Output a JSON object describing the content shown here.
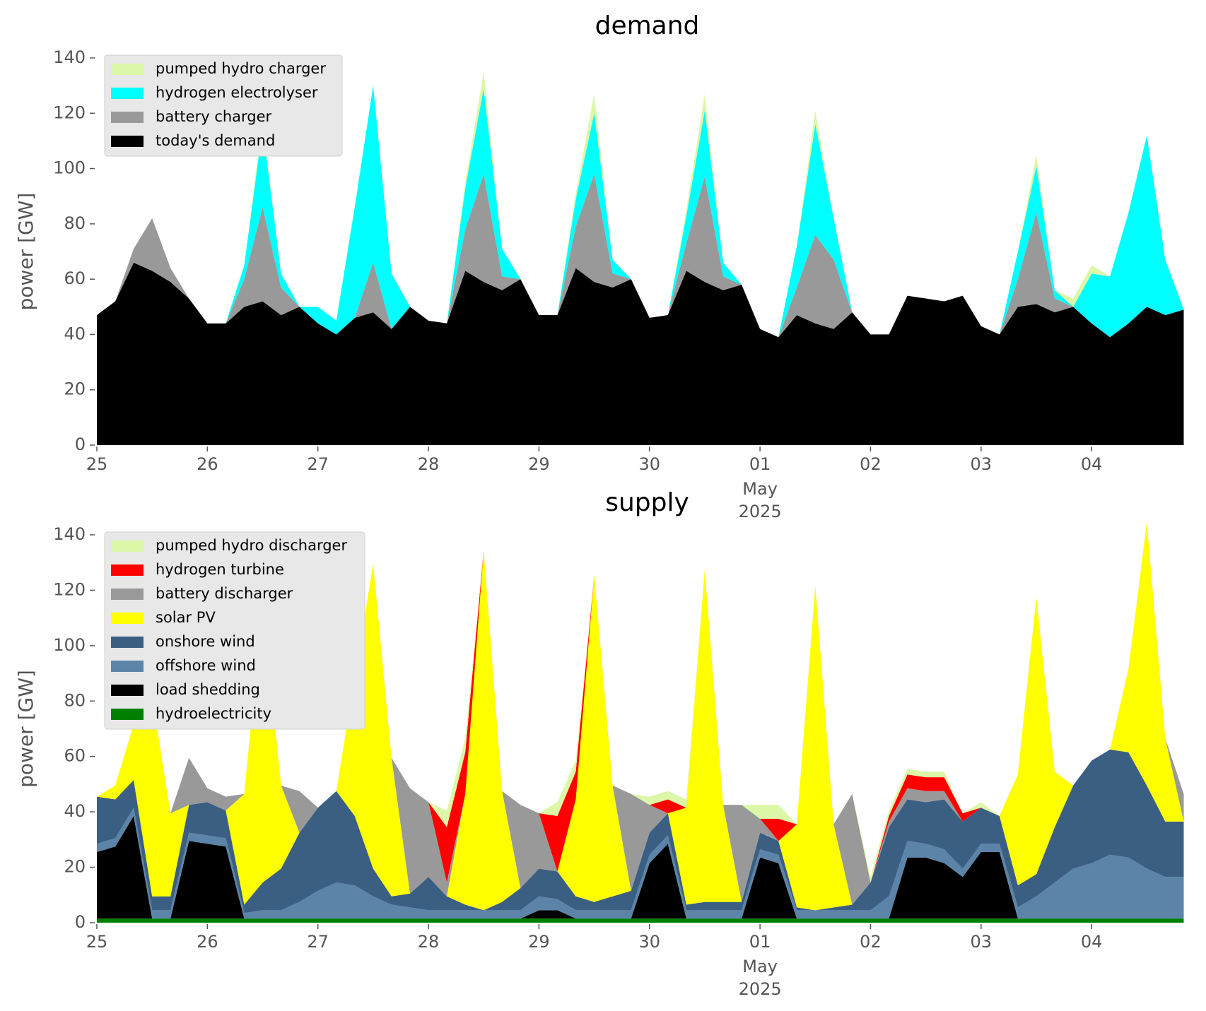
{
  "chart_data": [
    {
      "type": "stacked_area",
      "title": "demand",
      "ylabel": "power [GW]",
      "x": [
        "2025-04-25T00:00",
        "2025-04-25T04:00",
        "2025-04-25T08:00",
        "2025-04-25T12:00",
        "2025-04-25T16:00",
        "2025-04-25T20:00",
        "2025-04-26T00:00",
        "2025-04-26T04:00",
        "2025-04-26T08:00",
        "2025-04-26T12:00",
        "2025-04-26T16:00",
        "2025-04-26T20:00",
        "2025-04-27T00:00",
        "2025-04-27T04:00",
        "2025-04-27T08:00",
        "2025-04-27T12:00",
        "2025-04-27T16:00",
        "2025-04-27T20:00",
        "2025-04-28T00:00",
        "2025-04-28T04:00",
        "2025-04-28T08:00",
        "2025-04-28T12:00",
        "2025-04-28T16:00",
        "2025-04-28T20:00",
        "2025-04-29T00:00",
        "2025-04-29T04:00",
        "2025-04-29T08:00",
        "2025-04-29T12:00",
        "2025-04-29T16:00",
        "2025-04-29T20:00",
        "2025-04-30T00:00",
        "2025-04-30T04:00",
        "2025-04-30T08:00",
        "2025-04-30T12:00",
        "2025-04-30T16:00",
        "2025-04-30T20:00",
        "2025-05-01T00:00",
        "2025-05-01T04:00",
        "2025-05-01T08:00",
        "2025-05-01T12:00",
        "2025-05-01T16:00",
        "2025-05-01T20:00",
        "2025-05-02T00:00",
        "2025-05-02T04:00",
        "2025-05-02T08:00",
        "2025-05-02T12:00",
        "2025-05-02T16:00",
        "2025-05-02T20:00",
        "2025-05-03T00:00",
        "2025-05-03T04:00",
        "2025-05-03T08:00",
        "2025-05-03T12:00",
        "2025-05-03T16:00",
        "2025-05-03T20:00",
        "2025-05-04T00:00",
        "2025-05-04T04:00",
        "2025-05-04T08:00",
        "2025-05-04T12:00",
        "2025-05-04T16:00",
        "2025-05-04T20:00"
      ],
      "series": [
        {
          "name": "today's demand",
          "color": "#000000",
          "values": [
            47,
            52,
            66,
            63,
            59,
            53,
            44,
            44,
            50,
            52,
            47,
            50,
            44,
            40,
            46,
            48,
            42,
            50,
            45,
            44,
            63,
            59,
            56,
            60,
            47,
            47,
            64,
            59,
            57,
            60,
            46,
            47,
            63,
            59,
            56,
            58,
            42,
            39,
            47,
            44,
            42,
            48,
            40,
            40,
            54,
            53,
            52,
            54,
            43,
            40,
            50,
            51,
            48,
            50,
            44,
            39,
            44,
            50,
            47,
            49
          ]
        },
        {
          "name": "battery charger",
          "color": "#999999",
          "values": [
            0,
            0,
            5,
            19,
            5,
            0,
            0,
            0,
            10,
            34,
            10,
            0,
            0,
            0,
            0,
            18,
            0,
            0,
            0,
            0,
            15,
            39,
            5,
            0,
            0,
            0,
            15,
            39,
            5,
            0,
            0,
            0,
            10,
            38,
            5,
            0,
            0,
            0,
            10,
            32,
            25,
            0,
            0,
            0,
            0,
            0,
            0,
            0,
            0,
            0,
            10,
            33,
            5,
            0,
            0,
            0,
            0,
            0,
            0,
            0
          ]
        },
        {
          "name": "hydrogen electrolyser",
          "color": "#00ffff",
          "values": [
            0,
            0,
            0,
            0,
            0,
            0,
            0,
            0,
            5,
            29,
            5,
            0,
            6,
            5,
            40,
            64,
            20,
            0,
            0,
            0,
            15,
            31,
            10,
            0,
            0,
            0,
            10,
            22,
            5,
            0,
            0,
            0,
            10,
            24,
            5,
            0,
            0,
            0,
            15,
            40,
            15,
            0,
            0,
            0,
            0,
            0,
            0,
            0,
            0,
            0,
            10,
            17,
            3,
            0,
            18,
            22,
            40,
            62,
            20,
            0
          ]
        },
        {
          "name": "pumped hydro charger",
          "color": "#dcf7a8",
          "values": [
            0,
            0,
            0,
            0,
            0,
            0,
            0,
            0,
            0,
            3,
            0,
            0,
            0,
            0,
            0,
            0,
            0,
            0,
            0,
            0,
            2,
            6,
            0,
            0,
            0,
            0,
            2,
            7,
            0,
            0,
            0,
            0,
            2,
            6,
            0,
            0,
            0,
            0,
            0,
            5,
            0,
            0,
            0,
            0,
            0,
            0,
            0,
            0,
            0,
            0,
            0,
            4,
            0,
            3,
            3,
            0,
            0,
            0,
            0,
            0
          ]
        }
      ],
      "xlim": [
        "2025-04-25T00:00",
        "2025-05-04T23:00"
      ],
      "xticks": [
        {
          "value": "2025-04-25T00:00",
          "label": "25"
        },
        {
          "value": "2025-04-26T00:00",
          "label": "26"
        },
        {
          "value": "2025-04-27T00:00",
          "label": "27"
        },
        {
          "value": "2025-04-28T00:00",
          "label": "28"
        },
        {
          "value": "2025-04-29T00:00",
          "label": "29"
        },
        {
          "value": "2025-04-30T00:00",
          "label": "30"
        },
        {
          "value": "2025-05-01T00:00",
          "label": "01"
        },
        {
          "value": "2025-05-02T00:00",
          "label": "02"
        },
        {
          "value": "2025-05-03T00:00",
          "label": "03"
        },
        {
          "value": "2025-05-04T00:00",
          "label": "04"
        }
      ],
      "xtick_offset": {
        "value": "2025-05-01T00:00",
        "lines": [
          "May",
          "2025"
        ]
      },
      "ylim": [
        0,
        140
      ],
      "yticks": [
        0,
        20,
        40,
        60,
        80,
        100,
        120,
        140
      ],
      "legend": "upper left"
    },
    {
      "type": "stacked_area",
      "title": "supply",
      "ylabel": "power [GW]",
      "x": [
        "2025-04-25T00:00",
        "2025-04-25T04:00",
        "2025-04-25T08:00",
        "2025-04-25T12:00",
        "2025-04-25T16:00",
        "2025-04-25T20:00",
        "2025-04-26T00:00",
        "2025-04-26T04:00",
        "2025-04-26T08:00",
        "2025-04-26T12:00",
        "2025-04-26T16:00",
        "2025-04-26T20:00",
        "2025-04-27T00:00",
        "2025-04-27T04:00",
        "2025-04-27T08:00",
        "2025-04-27T12:00",
        "2025-04-27T16:00",
        "2025-04-27T20:00",
        "2025-04-28T00:00",
        "2025-04-28T04:00",
        "2025-04-28T08:00",
        "2025-04-28T12:00",
        "2025-04-28T16:00",
        "2025-04-28T20:00",
        "2025-04-29T00:00",
        "2025-04-29T04:00",
        "2025-04-29T08:00",
        "2025-04-29T12:00",
        "2025-04-29T16:00",
        "2025-04-29T20:00",
        "2025-04-30T00:00",
        "2025-04-30T04:00",
        "2025-04-30T08:00",
        "2025-04-30T12:00",
        "2025-04-30T16:00",
        "2025-04-30T20:00",
        "2025-05-01T00:00",
        "2025-05-01T04:00",
        "2025-05-01T08:00",
        "2025-05-01T12:00",
        "2025-05-01T16:00",
        "2025-05-01T20:00",
        "2025-05-02T00:00",
        "2025-05-02T04:00",
        "2025-05-02T08:00",
        "2025-05-02T12:00",
        "2025-05-02T16:00",
        "2025-05-02T20:00",
        "2025-05-03T00:00",
        "2025-05-03T04:00",
        "2025-05-03T08:00",
        "2025-05-03T12:00",
        "2025-05-03T16:00",
        "2025-05-03T20:00",
        "2025-05-04T00:00",
        "2025-05-04T04:00",
        "2025-05-04T08:00",
        "2025-05-04T12:00",
        "2025-05-04T16:00",
        "2025-05-04T20:00"
      ],
      "series": [
        {
          "name": "hydroelectricity",
          "color": "#008000",
          "values": [
            1.5,
            1.5,
            1.5,
            1.5,
            1.5,
            1.5,
            1.5,
            1.5,
            1.5,
            1.5,
            1.5,
            1.5,
            1.5,
            1.5,
            1.5,
            1.5,
            1.5,
            1.5,
            1.5,
            1.5,
            1.5,
            1.5,
            1.5,
            1.5,
            1.5,
            1.5,
            1.5,
            1.5,
            1.5,
            1.5,
            1.5,
            1.5,
            1.5,
            1.5,
            1.5,
            1.5,
            1.5,
            1.5,
            1.5,
            1.5,
            1.5,
            1.5,
            1.5,
            1.5,
            1.5,
            1.5,
            1.5,
            1.5,
            1.5,
            1.5,
            1.5,
            1.5,
            1.5,
            1.5,
            1.5,
            1.5,
            1.5,
            1.5,
            1.5,
            1.5
          ]
        },
        {
          "name": "load shedding",
          "color": "#000000",
          "values": [
            24,
            26,
            37,
            0,
            0,
            28,
            27,
            26,
            0,
            0,
            0,
            0,
            0,
            0,
            0,
            0,
            0,
            0,
            0,
            0,
            0,
            0,
            0,
            0,
            3,
            3,
            0,
            0,
            0,
            0,
            20,
            27,
            0,
            0,
            0,
            0,
            22,
            20,
            0,
            0,
            0,
            0,
            0,
            0,
            22,
            22,
            20,
            15,
            24,
            24,
            0,
            0,
            0,
            0,
            0,
            0,
            0,
            0,
            0,
            0
          ]
        },
        {
          "name": "offshore wind",
          "color": "#5b84a8",
          "values": [
            3,
            3,
            3,
            3,
            3,
            3,
            3,
            3,
            2,
            3,
            3,
            6,
            10,
            13,
            12,
            8,
            5,
            4,
            3,
            3,
            3,
            3,
            3,
            3,
            5,
            4,
            3,
            3,
            3,
            3,
            3,
            3,
            3,
            3,
            3,
            3,
            3,
            3,
            3,
            3,
            3,
            3,
            3,
            8,
            6,
            5,
            5,
            3,
            3,
            3,
            4,
            8,
            13,
            18,
            20,
            23,
            22,
            18,
            15,
            15
          ]
        },
        {
          "name": "onshore wind",
          "color": "#3b5f82",
          "values": [
            17,
            14,
            10,
            5,
            5,
            10,
            12,
            10,
            3,
            10,
            15,
            25,
            30,
            33,
            25,
            10,
            3,
            5,
            12,
            5,
            2,
            0,
            3,
            8,
            10,
            10,
            5,
            3,
            5,
            7,
            8,
            8,
            2,
            3,
            3,
            3,
            6,
            5,
            1,
            0,
            1,
            2,
            10,
            25,
            15,
            15,
            18,
            17,
            13,
            10,
            8,
            8,
            20,
            30,
            37,
            38,
            38,
            30,
            20,
            20
          ]
        },
        {
          "name": "solar PV",
          "color": "#ffff00",
          "values": [
            0,
            5,
            20,
            72,
            30,
            0,
            0,
            0,
            40,
            100,
            30,
            0,
            0,
            0,
            50,
            110,
            50,
            0,
            0,
            0,
            40,
            130,
            40,
            0,
            0,
            0,
            35,
            118,
            40,
            0,
            0,
            0,
            35,
            120,
            35,
            0,
            0,
            0,
            30,
            117,
            30,
            0,
            0,
            0,
            0,
            0,
            0,
            0,
            0,
            0,
            40,
            100,
            20,
            0,
            0,
            0,
            30,
            95,
            30,
            0
          ]
        },
        {
          "name": "battery discharger",
          "color": "#999999",
          "values": [
            0,
            0,
            0,
            0,
            0,
            17,
            5,
            5,
            0,
            0,
            0,
            15,
            0,
            0,
            0,
            0,
            0,
            38,
            27,
            5,
            0,
            0,
            0,
            30,
            20,
            0,
            0,
            0,
            0,
            35,
            10,
            0,
            0,
            0,
            0,
            35,
            5,
            0,
            0,
            0,
            0,
            40,
            0,
            2,
            4,
            4,
            3,
            0,
            0,
            0,
            0,
            0,
            0,
            0,
            0,
            0,
            0,
            0,
            0,
            10
          ]
        },
        {
          "name": "hydrogen turbine",
          "color": "#ff0000",
          "values": [
            0,
            0,
            0,
            0,
            0,
            0,
            0,
            0,
            0,
            0,
            0,
            0,
            0,
            0,
            0,
            0,
            0,
            0,
            0,
            20,
            15,
            0,
            0,
            0,
            0,
            20,
            10,
            0,
            0,
            0,
            0,
            5,
            0,
            0,
            0,
            0,
            0,
            8,
            0,
            0,
            0,
            0,
            0,
            2,
            5,
            5,
            5,
            3,
            0,
            0,
            0,
            0,
            0,
            0,
            0,
            0,
            0,
            0,
            0,
            0
          ]
        },
        {
          "name": "pumped hydro discharger",
          "color": "#dcf7a8",
          "values": [
            0,
            0,
            0,
            0,
            0,
            0,
            0,
            0,
            0,
            0,
            0,
            0,
            0,
            0,
            0,
            0,
            0,
            0,
            0,
            6,
            5,
            0,
            0,
            0,
            0,
            5,
            4,
            0,
            0,
            0,
            3,
            3,
            3,
            0,
            0,
            0,
            5,
            5,
            0,
            0,
            0,
            0,
            2,
            2,
            2,
            2,
            2,
            0,
            2,
            0,
            0,
            0,
            0,
            0,
            0,
            0,
            0,
            0,
            0,
            0
          ]
        }
      ],
      "xlim": [
        "2025-04-25T00:00",
        "2025-05-04T23:00"
      ],
      "xticks": [
        {
          "value": "2025-04-25T00:00",
          "label": "25"
        },
        {
          "value": "2025-04-26T00:00",
          "label": "26"
        },
        {
          "value": "2025-04-27T00:00",
          "label": "27"
        },
        {
          "value": "2025-04-28T00:00",
          "label": "28"
        },
        {
          "value": "2025-04-29T00:00",
          "label": "29"
        },
        {
          "value": "2025-04-30T00:00",
          "label": "30"
        },
        {
          "value": "2025-05-01T00:00",
          "label": "01"
        },
        {
          "value": "2025-05-02T00:00",
          "label": "02"
        },
        {
          "value": "2025-05-03T00:00",
          "label": "03"
        },
        {
          "value": "2025-05-04T00:00",
          "label": "04"
        }
      ],
      "xtick_offset": {
        "value": "2025-05-01T00:00",
        "lines": [
          "May",
          "2025"
        ]
      },
      "ylim": [
        0,
        140
      ],
      "yticks": [
        0,
        20,
        40,
        60,
        80,
        100,
        120,
        140
      ],
      "legend": "upper left"
    }
  ]
}
